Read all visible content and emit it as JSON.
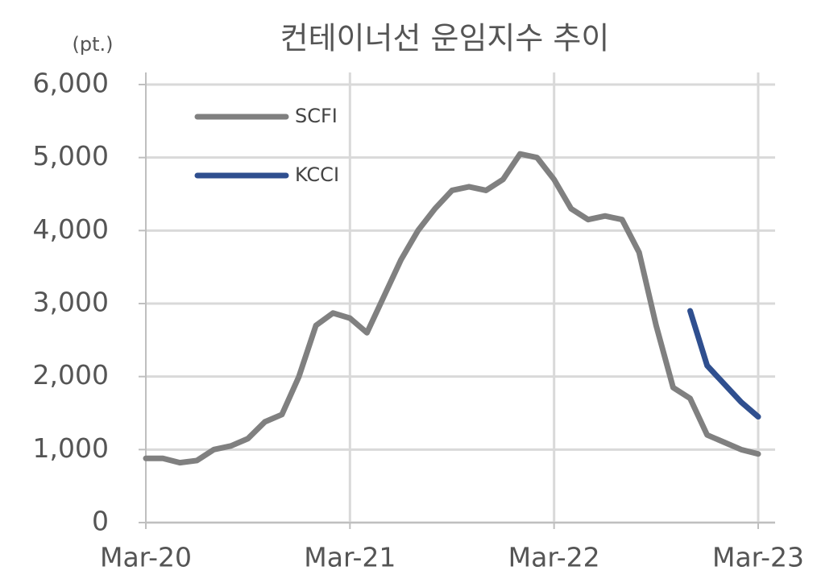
{
  "chart_data": {
    "type": "line",
    "title": "컨테이너선 운임지수 추이",
    "y_unit": "(pt.)",
    "categories": [
      "Mar-20",
      null,
      null,
      null,
      null,
      null,
      null,
      null,
      null,
      null,
      null,
      null,
      "Mar-21",
      null,
      null,
      null,
      null,
      null,
      null,
      null,
      null,
      null,
      null,
      null,
      "Mar-22",
      null,
      null,
      null,
      null,
      null,
      null,
      null,
      null,
      null,
      null,
      null,
      "Mar-23"
    ],
    "series": [
      {
        "name": "SCFI",
        "color": "#808080",
        "values": [
          880,
          880,
          820,
          850,
          1000,
          1050,
          1150,
          1380,
          1480,
          2000,
          2700,
          2870,
          2800,
          2600,
          3100,
          3600,
          4000,
          4300,
          4550,
          4600,
          4550,
          4700,
          5050,
          5000,
          4700,
          4300,
          4150,
          4200,
          4150,
          3700,
          2700,
          1850,
          1700,
          1200,
          1100,
          1000,
          940
        ]
      },
      {
        "name": "KCCI",
        "color": "#2f4f8f",
        "values": [
          null,
          null,
          null,
          null,
          null,
          null,
          null,
          null,
          null,
          null,
          null,
          null,
          null,
          null,
          null,
          null,
          null,
          null,
          null,
          null,
          null,
          null,
          null,
          null,
          null,
          null,
          null,
          null,
          null,
          null,
          null,
          null,
          2900,
          2150,
          1900,
          1650,
          1450
        ]
      }
    ],
    "ylim": [
      0,
      6000
    ],
    "yticks": [
      0,
      {
        "value": 1000,
        "label": "1,000"
      },
      {
        "value": 2000,
        "label": "2,000"
      },
      {
        "value": 3000,
        "label": "3,000"
      },
      {
        "value": 4000,
        "label": "4,000"
      },
      {
        "value": 5000,
        "label": "5,000"
      },
      {
        "value": 6000,
        "label": "6,000"
      }
    ],
    "grid": true
  }
}
